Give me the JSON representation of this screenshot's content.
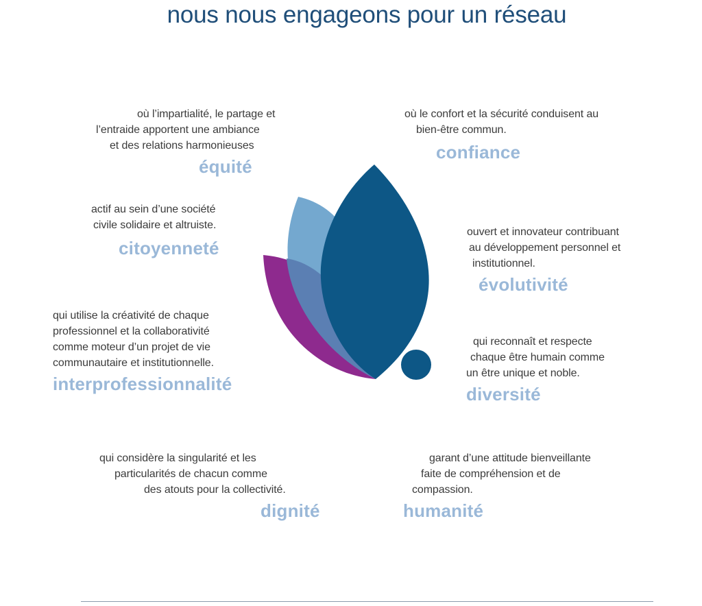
{
  "title": "nous nous engageons pour un réseau",
  "colors": {
    "title": "#1f4e79",
    "keyword": "#9ab8d8",
    "body_text": "#3b3b3b",
    "petal_dark": "#0d5786",
    "petal_mid": "#5b7fb3",
    "petal_light": "#74a8cf",
    "petal_purple": "#8e2a8e"
  },
  "values": {
    "equite": {
      "lines": [
        "où l’impartialité, le partage et",
        "l’entraide apportent une ambiance",
        "et des relations harmonieuses"
      ],
      "word": "équité"
    },
    "confiance": {
      "lines": [
        "où le confort et la sécurité conduisent au",
        "bien-être commun."
      ],
      "word": "confiance"
    },
    "citoyennete": {
      "lines": [
        "actif au sein d’une société",
        "civile solidaire et altruiste."
      ],
      "word": "citoyenneté"
    },
    "evolutivite": {
      "lines": [
        "ouvert et innovateur contribuant",
        "au développement personnel et",
        "institutionnel."
      ],
      "word": "évolutivité"
    },
    "interprofessionnalite": {
      "lines": [
        "qui utilise la créativité de chaque",
        "professionnel et la collaborativité",
        "comme moteur d’un projet de vie",
        "communautaire et institutionnelle."
      ],
      "word": "interprofessionnalité"
    },
    "diversite": {
      "lines": [
        "qui reconnaît et respecte",
        "chaque être humain comme",
        "un être unique et noble."
      ],
      "word": "diversité"
    },
    "dignite": {
      "lines": [
        "qui considère la singularité et les",
        "particularités de chacun comme",
        "des atouts pour la collectivité."
      ],
      "word": "dignité"
    },
    "humanite": {
      "lines": [
        "garant d’une attitude bienveillante",
        "faite de compréhension et de",
        "compassion."
      ],
      "word": "humanité"
    }
  }
}
